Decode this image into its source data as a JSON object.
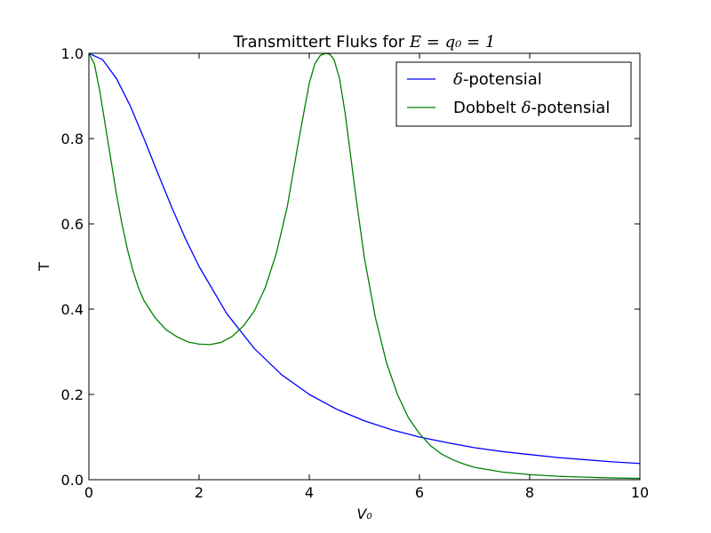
{
  "chart_data": {
    "type": "line",
    "title_prefix": "Transmittert Fluks for ",
    "title_math": "E = q₀ = 1",
    "xlabel": "V₀",
    "ylabel": "T",
    "xlim": [
      0,
      10
    ],
    "ylim": [
      0,
      1
    ],
    "x_ticks": [
      "0",
      "2",
      "4",
      "6",
      "8",
      "10"
    ],
    "y_ticks": [
      "0.0",
      "0.2",
      "0.4",
      "0.6",
      "0.8",
      "1.0"
    ],
    "grid": false,
    "legend_position": "top-right",
    "series": [
      {
        "name_math": "δ",
        "name_text": "-potensial",
        "color": "#0000ff",
        "x": [
          0,
          0.25,
          0.5,
          0.75,
          1,
          1.25,
          1.5,
          1.75,
          2,
          2.5,
          3,
          3.5,
          4,
          4.5,
          5,
          5.5,
          6,
          6.5,
          7,
          7.5,
          8,
          8.5,
          9,
          9.5,
          10
        ],
        "values": [
          1,
          0.985,
          0.941,
          0.877,
          0.8,
          0.719,
          0.64,
          0.566,
          0.5,
          0.39,
          0.308,
          0.246,
          0.2,
          0.165,
          0.138,
          0.117,
          0.1,
          0.087,
          0.075,
          0.066,
          0.059,
          0.052,
          0.047,
          0.042,
          0.038
        ]
      },
      {
        "name_prefix": "Dobbelt ",
        "name_math": "δ",
        "name_text": "-potensial",
        "color": "#008000",
        "x": [
          0,
          0.1,
          0.2,
          0.3,
          0.4,
          0.5,
          0.6,
          0.7,
          0.8,
          0.9,
          1.0,
          1.2,
          1.4,
          1.6,
          1.8,
          2.0,
          2.2,
          2.4,
          2.6,
          2.8,
          3.0,
          3.2,
          3.4,
          3.6,
          3.8,
          4.0,
          4.1,
          4.2,
          4.3,
          4.37,
          4.45,
          4.55,
          4.65,
          4.75,
          4.85,
          5.0,
          5.2,
          5.4,
          5.6,
          5.8,
          6.0,
          6.2,
          6.4,
          6.6,
          6.8,
          7.0,
          7.5,
          8.0,
          8.5,
          9.0,
          9.5,
          10.0
        ],
        "values": [
          1.0,
          0.975,
          0.91,
          0.83,
          0.75,
          0.67,
          0.6,
          0.54,
          0.49,
          0.45,
          0.42,
          0.38,
          0.352,
          0.335,
          0.323,
          0.318,
          0.317,
          0.322,
          0.336,
          0.36,
          0.395,
          0.45,
          0.53,
          0.64,
          0.79,
          0.93,
          0.975,
          0.995,
          1.0,
          0.998,
          0.985,
          0.94,
          0.86,
          0.76,
          0.66,
          0.52,
          0.38,
          0.275,
          0.2,
          0.145,
          0.108,
          0.08,
          0.06,
          0.047,
          0.037,
          0.029,
          0.018,
          0.012,
          0.008,
          0.006,
          0.004,
          0.003
        ]
      }
    ]
  }
}
